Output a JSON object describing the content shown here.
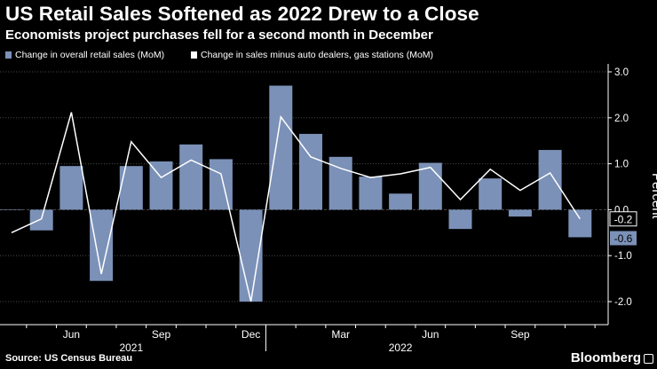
{
  "header": {
    "title": "US Retail Sales Softened as 2022 Drew to a Close",
    "subtitle": "Economists project purchases fell for a second month in December"
  },
  "footer": {
    "source": "Source: US Census Bureau",
    "brand": "Bloomberg"
  },
  "colors": {
    "bar": "#7b91b8",
    "line": "#ffffff",
    "background": "#000000",
    "grid": "#4a4a4a"
  },
  "chart_data": {
    "type": "bar",
    "ylabel": "Percent",
    "ylim": [
      -2.2,
      3.0
    ],
    "yticks": [
      "3.0",
      "2.0",
      "1.0",
      "0.0",
      "-1.0",
      "-2.0"
    ],
    "ytick_values": [
      3.0,
      2.0,
      1.0,
      0.0,
      -1.0,
      -2.0
    ],
    "grid": true,
    "legend_position": "top-left",
    "months": [
      "Apr 2021",
      "May 2021",
      "Jun 2021",
      "Jul 2021",
      "Aug 2021",
      "Sep 2021",
      "Oct 2021",
      "Nov 2021",
      "Dec 2021",
      "Jan 2022",
      "Feb 2022",
      "Mar 2022",
      "Apr 2022",
      "May 2022",
      "Jun 2022",
      "Jul 2022",
      "Aug 2022",
      "Sep 2022",
      "Oct 2022",
      "Nov 2022"
    ],
    "x_tick_labels": [
      {
        "label": "Jun",
        "index": 2
      },
      {
        "label": "Sep",
        "index": 5
      },
      {
        "label": "Dec",
        "index": 8
      },
      {
        "label": "Mar",
        "index": 11
      },
      {
        "label": "Jun",
        "index": 14
      },
      {
        "label": "Sep",
        "index": 17
      }
    ],
    "year_labels": [
      {
        "label": "2021",
        "index": 4
      },
      {
        "label": "2022",
        "index": 13
      }
    ],
    "series": [
      {
        "name": "Change in overall retail sales (MoM)",
        "type": "bar",
        "values": [
          0.0,
          -0.45,
          0.95,
          -1.55,
          0.95,
          1.05,
          1.42,
          1.1,
          -2.0,
          2.7,
          1.65,
          1.15,
          0.72,
          0.35,
          1.02,
          -0.42,
          0.68,
          -0.15,
          1.3,
          -0.6
        ]
      },
      {
        "name": "Change in sales minus auto dealers, gas stations (MoM)",
        "type": "line",
        "values": [
          -0.5,
          -0.2,
          2.12,
          -1.4,
          1.48,
          0.7,
          1.08,
          0.78,
          -2.0,
          2.02,
          1.15,
          0.9,
          0.7,
          0.78,
          0.92,
          0.22,
          0.88,
          0.42,
          0.8,
          -0.2
        ]
      }
    ],
    "end_labels": [
      {
        "text": "-0.2",
        "value": -0.2,
        "style": "line"
      },
      {
        "text": "-0.6",
        "value": -0.6,
        "style": "bar"
      }
    ]
  }
}
